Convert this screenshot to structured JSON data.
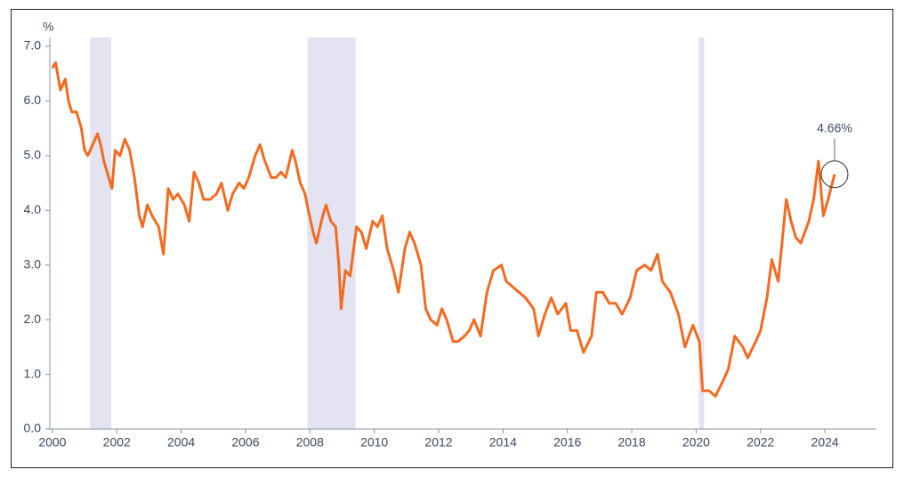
{
  "chart_data": {
    "type": "line",
    "y_unit": "%",
    "x": [
      2000.0,
      2000.1,
      2000.25,
      2000.4,
      2000.5,
      2000.6,
      2000.75,
      2000.9,
      2001.0,
      2001.1,
      2001.25,
      2001.4,
      2001.5,
      2001.6,
      2001.75,
      2001.85,
      2001.95,
      2002.1,
      2002.25,
      2002.4,
      2002.55,
      2002.7,
      2002.8,
      2002.95,
      2003.1,
      2003.3,
      2003.45,
      2003.6,
      2003.75,
      2003.9,
      2004.1,
      2004.25,
      2004.4,
      2004.55,
      2004.7,
      2004.9,
      2005.1,
      2005.25,
      2005.45,
      2005.6,
      2005.8,
      2005.95,
      2006.1,
      2006.3,
      2006.45,
      2006.6,
      2006.8,
      2006.95,
      2007.1,
      2007.25,
      2007.45,
      2007.55,
      2007.7,
      2007.85,
      2007.95,
      2008.1,
      2008.2,
      2008.4,
      2008.5,
      2008.65,
      2008.8,
      2008.9,
      2008.97,
      2009.1,
      2009.25,
      2009.45,
      2009.6,
      2009.75,
      2009.95,
      2010.1,
      2010.25,
      2010.4,
      2010.6,
      2010.75,
      2010.95,
      2011.1,
      2011.25,
      2011.45,
      2011.6,
      2011.75,
      2011.95,
      2012.1,
      2012.25,
      2012.45,
      2012.6,
      2012.8,
      2012.95,
      2013.1,
      2013.3,
      2013.5,
      2013.7,
      2013.95,
      2014.1,
      2014.3,
      2014.5,
      2014.7,
      2014.95,
      2015.1,
      2015.3,
      2015.5,
      2015.7,
      2015.95,
      2016.1,
      2016.3,
      2016.5,
      2016.75,
      2016.9,
      2017.1,
      2017.3,
      2017.5,
      2017.7,
      2017.95,
      2018.15,
      2018.4,
      2018.6,
      2018.8,
      2018.95,
      2019.2,
      2019.45,
      2019.65,
      2019.9,
      2020.1,
      2020.2,
      2020.4,
      2020.6,
      2020.85,
      2021.0,
      2021.2,
      2021.45,
      2021.6,
      2021.85,
      2022.0,
      2022.2,
      2022.35,
      2022.55,
      2022.8,
      2022.95,
      2023.1,
      2023.25,
      2023.5,
      2023.65,
      2023.8,
      2023.95,
      2024.1,
      2024.3
    ],
    "series": [
      {
        "color": "#f26b21",
        "values": [
          6.6,
          6.7,
          6.2,
          6.4,
          6.0,
          5.8,
          5.8,
          5.5,
          5.1,
          5.0,
          5.2,
          5.4,
          5.2,
          4.9,
          4.6,
          4.4,
          5.1,
          5.0,
          5.3,
          5.1,
          4.6,
          3.9,
          3.7,
          4.1,
          3.9,
          3.7,
          3.2,
          4.4,
          4.2,
          4.3,
          4.1,
          3.8,
          4.7,
          4.5,
          4.2,
          4.2,
          4.3,
          4.5,
          4.0,
          4.3,
          4.5,
          4.4,
          4.6,
          5.0,
          5.2,
          4.9,
          4.6,
          4.6,
          4.7,
          4.6,
          5.1,
          4.9,
          4.5,
          4.3,
          4.0,
          3.6,
          3.4,
          3.9,
          4.1,
          3.8,
          3.7,
          3.0,
          2.2,
          2.9,
          2.8,
          3.7,
          3.6,
          3.3,
          3.8,
          3.7,
          3.9,
          3.3,
          2.9,
          2.5,
          3.3,
          3.6,
          3.4,
          3.0,
          2.2,
          2.0,
          1.9,
          2.2,
          2.0,
          1.6,
          1.6,
          1.7,
          1.8,
          2.0,
          1.7,
          2.5,
          2.9,
          3.0,
          2.7,
          2.6,
          2.5,
          2.4,
          2.2,
          1.7,
          2.1,
          2.4,
          2.1,
          2.3,
          1.8,
          1.8,
          1.4,
          1.7,
          2.5,
          2.5,
          2.3,
          2.3,
          2.1,
          2.4,
          2.9,
          3.0,
          2.9,
          3.2,
          2.7,
          2.5,
          2.1,
          1.5,
          1.9,
          1.6,
          0.7,
          0.7,
          0.6,
          0.9,
          1.1,
          1.7,
          1.5,
          1.3,
          1.6,
          1.8,
          2.4,
          3.1,
          2.7,
          4.2,
          3.8,
          3.5,
          3.4,
          3.8,
          4.2,
          4.9,
          3.9,
          4.2,
          4.66
        ]
      }
    ],
    "recessions": [
      [
        2001.17,
        2001.83
      ],
      [
        2007.92,
        2009.42
      ],
      [
        2020.08,
        2020.25
      ]
    ],
    "recession_color": "#e3e3f2",
    "annotation": {
      "value": 4.66,
      "label": "4.66%"
    },
    "xlim": [
      1999.92,
      2025.6
    ],
    "xticks": [
      2000,
      2002,
      2004,
      2006,
      2008,
      2010,
      2012,
      2014,
      2016,
      2018,
      2020,
      2022,
      2024
    ],
    "ylim": [
      0,
      7.0
    ],
    "yticks": [
      {
        "value": 0,
        "label": "0.0"
      },
      {
        "value": 1,
        "label": "1.0"
      },
      {
        "value": 2,
        "label": "2.0"
      },
      {
        "value": 3,
        "label": "3.0"
      },
      {
        "value": 4,
        "label": "4.0"
      },
      {
        "value": 5,
        "label": "5.0"
      },
      {
        "value": 6,
        "label": "6.0"
      },
      {
        "value": 7,
        "label": "7.0"
      }
    ]
  }
}
